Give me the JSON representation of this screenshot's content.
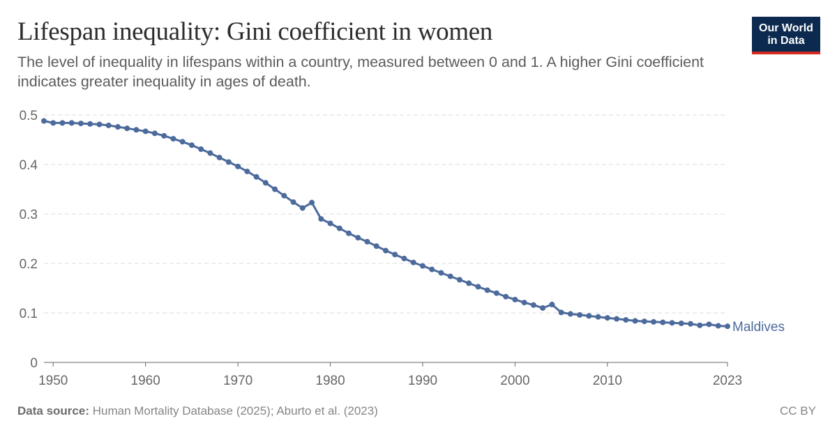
{
  "header": {
    "title": "Lifespan inequality: Gini coefficient in women",
    "subtitle": "The level of inequality in lifespans within a country, measured between 0 and 1. A higher Gini coefficient indicates greater inequality in ages of death.",
    "logo_line1": "Our World",
    "logo_line2": "in Data"
  },
  "footer": {
    "source_label": "Data source:",
    "source_text": "Human Mortality Database (2025); Aburto et al. (2023)",
    "license": "CC BY"
  },
  "colors": {
    "series": "#4c6a9c",
    "grid": "#dddddd",
    "axis": "#666666",
    "tick_text": "#666666",
    "logo_bg": "#0c2a4f",
    "logo_accent": "#d42b21"
  },
  "chart_data": {
    "type": "line",
    "xlim": [
      1949,
      2023
    ],
    "ylim": [
      0,
      0.5
    ],
    "x_ticks": [
      1950,
      1960,
      1970,
      1980,
      1990,
      2000,
      2010,
      2023
    ],
    "y_ticks": [
      0,
      0.1,
      0.2,
      0.3,
      0.4,
      0.5
    ],
    "y_tick_labels": [
      "0",
      "0.1",
      "0.2",
      "0.3",
      "0.4",
      "0.5"
    ],
    "grid": "horizontal dashed",
    "series": [
      {
        "name": "Maldives",
        "x": [
          1949,
          1950,
          1951,
          1952,
          1953,
          1954,
          1955,
          1956,
          1957,
          1958,
          1959,
          1960,
          1961,
          1962,
          1963,
          1964,
          1965,
          1966,
          1967,
          1968,
          1969,
          1970,
          1971,
          1972,
          1973,
          1974,
          1975,
          1976,
          1977,
          1978,
          1979,
          1980,
          1981,
          1982,
          1983,
          1984,
          1985,
          1986,
          1987,
          1988,
          1989,
          1990,
          1991,
          1992,
          1993,
          1994,
          1995,
          1996,
          1997,
          1998,
          1999,
          2000,
          2001,
          2002,
          2003,
          2004,
          2005,
          2006,
          2007,
          2008,
          2009,
          2010,
          2011,
          2012,
          2013,
          2014,
          2015,
          2016,
          2017,
          2018,
          2019,
          2020,
          2021,
          2022,
          2023
        ],
        "y": [
          0.488,
          0.484,
          0.484,
          0.484,
          0.483,
          0.482,
          0.481,
          0.479,
          0.476,
          0.473,
          0.47,
          0.467,
          0.463,
          0.458,
          0.452,
          0.446,
          0.439,
          0.431,
          0.423,
          0.414,
          0.405,
          0.396,
          0.386,
          0.375,
          0.363,
          0.35,
          0.337,
          0.324,
          0.312,
          0.323,
          0.29,
          0.281,
          0.271,
          0.261,
          0.252,
          0.244,
          0.235,
          0.226,
          0.218,
          0.21,
          0.202,
          0.195,
          0.188,
          0.181,
          0.174,
          0.167,
          0.16,
          0.153,
          0.146,
          0.14,
          0.133,
          0.127,
          0.121,
          0.116,
          0.11,
          0.117,
          0.101,
          0.098,
          0.096,
          0.094,
          0.092,
          0.09,
          0.088,
          0.086,
          0.084,
          0.083,
          0.082,
          0.081,
          0.08,
          0.079,
          0.078,
          0.075,
          0.077,
          0.074,
          0.073
        ]
      }
    ]
  }
}
